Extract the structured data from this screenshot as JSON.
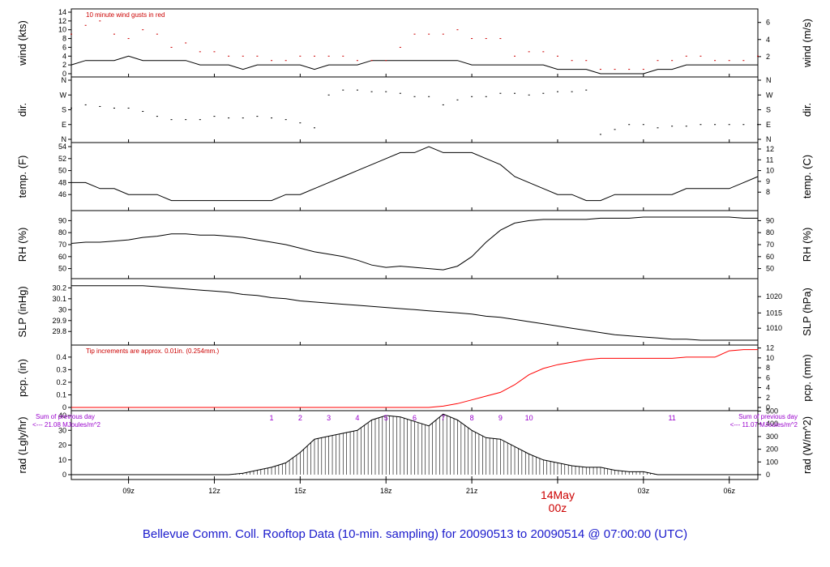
{
  "footer_title": "Bellevue Comm. Coll. Rooftop Data (10-min. sampling) for 20090513  to  20090514 @ 07:00:00  (UTC)",
  "x_axis": {
    "ticks": [
      "09z",
      "12z",
      "15z",
      "18z",
      "21z",
      "00z",
      "03z",
      "06z"
    ],
    "tick_hours": [
      9,
      12,
      15,
      18,
      21,
      24,
      27,
      30
    ],
    "date_label": "14May",
    "date_tick": "00z",
    "range_hours": [
      7,
      31
    ]
  },
  "colors": {
    "primary": "#000000",
    "gust": "#cc0000",
    "precip": "#ff0000",
    "note_red": "#cc0000",
    "note_purple": "#9900cc",
    "footer": "#1a1acc"
  },
  "chart_data": [
    {
      "id": "wind",
      "type": "line",
      "ylabel": "wind (kts)",
      "ylabel2": "wind (m/s)",
      "ylim": [
        0,
        14
      ],
      "yticks": [
        0,
        2,
        4,
        6,
        8,
        10,
        12,
        14
      ],
      "yticks2_units": [
        2,
        4,
        6
      ],
      "yticks2_values": [
        3.89,
        7.78,
        11.66
      ],
      "annotation": "10  minute wind gusts in red",
      "series": [
        {
          "values_hourly": [
            2,
            3,
            3,
            3,
            4,
            3,
            3,
            3,
            3,
            2,
            2,
            2,
            1,
            2,
            2,
            2,
            2,
            1,
            2,
            2,
            2,
            3,
            3,
            3,
            3,
            3,
            3,
            3,
            2,
            2,
            2,
            2,
            2,
            2,
            1,
            1,
            1,
            0,
            0,
            0,
            0,
            1,
            1,
            2,
            2,
            2,
            2,
            2,
            2
          ]
        },
        {
          "style": "points",
          "values_hourly": [
            9,
            11,
            12,
            9,
            8,
            10,
            9,
            6,
            7,
            5,
            5,
            4,
            4,
            4,
            3,
            3,
            4,
            4,
            4,
            4,
            3,
            3,
            3,
            6,
            9,
            9,
            9,
            10,
            8,
            8,
            8,
            4,
            5,
            5,
            4,
            3,
            3,
            1,
            1,
            1,
            1,
            3,
            3,
            4,
            4,
            3,
            3,
            3,
            4
          ]
        }
      ]
    },
    {
      "id": "dir",
      "type": "scatter",
      "ylabel": "dir.",
      "ylabel2": "dir.",
      "ylim": [
        0,
        360
      ],
      "yticks": [
        0,
        90,
        180,
        270,
        360
      ],
      "ytick_labels": [
        "N",
        "E",
        "S",
        "W",
        "N"
      ],
      "values_hourly": [
        190,
        210,
        200,
        190,
        190,
        170,
        140,
        120,
        120,
        120,
        140,
        130,
        130,
        140,
        130,
        120,
        100,
        70,
        270,
        300,
        300,
        290,
        290,
        280,
        260,
        260,
        210,
        240,
        260,
        260,
        280,
        280,
        270,
        280,
        290,
        290,
        300,
        30,
        60,
        90,
        90,
        70,
        80,
        80,
        90,
        90,
        90,
        90,
        90
      ]
    },
    {
      "id": "temp",
      "type": "line",
      "ylabel": "temp. (F)",
      "ylabel2": "temp. (C)",
      "ylim": [
        44,
        54
      ],
      "yticks": [
        46,
        48,
        50,
        52,
        54
      ],
      "yticks2_units": [
        8,
        9,
        10,
        11,
        12
      ],
      "yticks2_values": [
        46.4,
        48.2,
        50.0,
        51.8,
        53.6
      ],
      "values_hourly": [
        48,
        48,
        47,
        47,
        46,
        46,
        46,
        45,
        45,
        45,
        45,
        45,
        45,
        45,
        45,
        46,
        46,
        47,
        48,
        49,
        50,
        51,
        52,
        53,
        53,
        54,
        53,
        53,
        53,
        52,
        51,
        49,
        48,
        47,
        46,
        46,
        45,
        45,
        46,
        46,
        46,
        46,
        46,
        47,
        47,
        47,
        47,
        48,
        49
      ]
    },
    {
      "id": "rh",
      "type": "line",
      "ylabel": "RH (%)",
      "ylabel2": "RH (%)",
      "ylim": [
        45,
        95
      ],
      "yticks": [
        50,
        60,
        70,
        80,
        90
      ],
      "yticks2_units": [
        50,
        60,
        70,
        80,
        90
      ],
      "yticks2_values": [
        50,
        60,
        70,
        80,
        90
      ],
      "values_hourly": [
        71,
        72,
        72,
        73,
        74,
        76,
        77,
        79,
        79,
        78,
        78,
        77,
        76,
        74,
        72,
        70,
        67,
        64,
        62,
        60,
        57,
        53,
        51,
        52,
        51,
        50,
        49,
        52,
        60,
        72,
        82,
        88,
        90,
        91,
        91,
        91,
        91,
        92,
        92,
        92,
        93,
        93,
        93,
        93,
        93,
        93,
        93,
        92,
        92
      ]
    },
    {
      "id": "slp",
      "type": "line",
      "ylabel": "SLP (inHg)",
      "ylabel2": "SLP (hPa)",
      "ylim": [
        29.72,
        30.24
      ],
      "yticks": [
        29.8,
        29.9,
        30.0,
        30.1,
        30.2
      ],
      "yticks2_units": [
        1010,
        1015,
        1020
      ],
      "yticks2_values": [
        29.83,
        29.97,
        30.12
      ],
      "values_hourly": [
        30.22,
        30.22,
        30.22,
        30.22,
        30.22,
        30.22,
        30.21,
        30.2,
        30.19,
        30.18,
        30.17,
        30.16,
        30.14,
        30.13,
        30.11,
        30.1,
        30.08,
        30.07,
        30.06,
        30.05,
        30.04,
        30.03,
        30.02,
        30.01,
        30.0,
        29.99,
        29.98,
        29.97,
        29.96,
        29.94,
        29.93,
        29.91,
        29.89,
        29.87,
        29.85,
        29.83,
        29.81,
        29.79,
        29.77,
        29.76,
        29.75,
        29.74,
        29.73,
        29.73,
        29.72,
        29.72,
        29.72,
        29.72,
        29.72
      ]
    },
    {
      "id": "pcp",
      "type": "line",
      "ylabel": "pcp. (in)",
      "ylabel2": "pcp. (mm)",
      "ylim": [
        0,
        0.47
      ],
      "yticks": [
        0.0,
        0.1,
        0.2,
        0.3,
        0.4
      ],
      "yticks2_units": [
        0,
        2,
        4,
        6,
        8,
        10,
        12
      ],
      "yticks2_values": [
        0,
        0.0787,
        0.1575,
        0.2362,
        0.315,
        0.3937,
        0.4724
      ],
      "annotation": "Tip increments are approx. 0.01in. (0.254mm.)",
      "values_hourly": [
        0,
        0,
        0,
        0,
        0,
        0,
        0,
        0,
        0,
        0,
        0,
        0,
        0,
        0,
        0,
        0,
        0,
        0,
        0,
        0,
        0,
        0,
        0,
        0,
        0,
        0,
        0.01,
        0.03,
        0.06,
        0.09,
        0.12,
        0.18,
        0.26,
        0.31,
        0.34,
        0.36,
        0.38,
        0.39,
        0.39,
        0.39,
        0.39,
        0.39,
        0.39,
        0.4,
        0.4,
        0.4,
        0.45,
        0.46,
        0.46
      ]
    },
    {
      "id": "rad",
      "type": "area",
      "ylabel": "rad (Lgly/hr)",
      "ylabel2": "rad (W/m^2)",
      "ylim": [
        0,
        40
      ],
      "yticks": [
        0,
        10,
        20,
        30,
        40
      ],
      "yticks2_units": [
        0,
        100,
        200,
        300,
        400,
        500
      ],
      "yticks2_values": [
        0,
        8.6,
        17.2,
        25.8,
        34.4,
        43.0
      ],
      "annotation_left": [
        "Sum of previous day",
        "<--- 21.08 MJoules/m^2"
      ],
      "annotation_right": [
        "Sum of previous day",
        "<--- 11.07 MJoules/m^2"
      ],
      "hour_labels": [
        "1",
        "2",
        "3",
        "4",
        "5",
        "6",
        "7",
        "8",
        "9",
        "10",
        "11"
      ],
      "hour_label_at": [
        14,
        15,
        16,
        17,
        18,
        19,
        20,
        21,
        22,
        23,
        28
      ],
      "values_hourly": [
        0,
        0,
        0,
        0,
        0,
        0,
        0,
        0,
        0,
        0,
        0,
        0,
        1,
        3,
        5,
        8,
        15,
        24,
        26,
        28,
        30,
        37,
        40,
        39,
        36,
        33,
        41,
        37,
        30,
        25,
        24,
        19,
        14,
        10,
        8,
        6,
        5,
        5,
        3,
        2,
        2,
        0,
        0,
        0,
        0,
        0,
        0,
        0,
        0
      ]
    }
  ]
}
